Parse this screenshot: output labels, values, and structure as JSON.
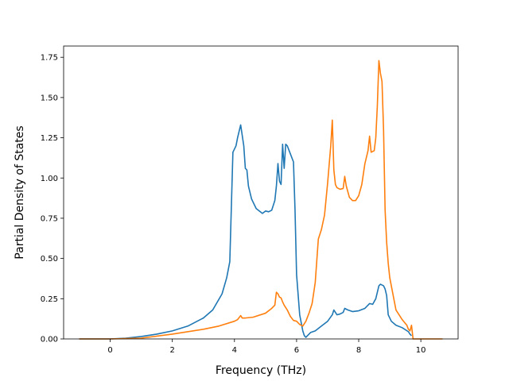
{
  "chart_data": {
    "type": "line",
    "title": "",
    "xlabel": "Frequency (THz)",
    "ylabel": "Partial Density of States",
    "xlim": [
      -1.5,
      11.2
    ],
    "ylim": [
      0,
      1.82
    ],
    "xticks": [
      0,
      2,
      4,
      6,
      8,
      10
    ],
    "xtick_labels": [
      "0",
      "2",
      "4",
      "6",
      "8",
      "10"
    ],
    "yticks": [
      0,
      0.25,
      0.5,
      0.75,
      1.0,
      1.25,
      1.5,
      1.75
    ],
    "ytick_labels": [
      "0.00",
      "0.25",
      "0.50",
      "0.75",
      "1.00",
      "1.25",
      "1.50",
      "1.75"
    ],
    "grid": false,
    "legend": "none",
    "series": [
      {
        "color": "#1f77b4",
        "x": [
          -1.0,
          0.0,
          0.5,
          1.0,
          1.5,
          2.0,
          2.5,
          3.0,
          3.3,
          3.6,
          3.75,
          3.85,
          3.95,
          4.05,
          4.1,
          4.2,
          4.3,
          4.35,
          4.4,
          4.45,
          4.55,
          4.7,
          4.9,
          5.0,
          5.1,
          5.2,
          5.3,
          5.35,
          5.4,
          5.45,
          5.5,
          5.55,
          5.6,
          5.65,
          5.7,
          5.8,
          5.9,
          5.95,
          6.0,
          6.1,
          6.2,
          6.25,
          6.3,
          6.35,
          6.45,
          6.6,
          6.8,
          7.0,
          7.15,
          7.2,
          7.3,
          7.4,
          7.5,
          7.55,
          7.65,
          7.8,
          8.0,
          8.2,
          8.35,
          8.45,
          8.55,
          8.65,
          8.7,
          8.8,
          8.85,
          8.9,
          8.95,
          9.05,
          9.2,
          9.4,
          9.6,
          9.65,
          9.7
        ],
        "y": [
          0.0,
          0.0,
          0.005,
          0.015,
          0.03,
          0.05,
          0.08,
          0.13,
          0.18,
          0.28,
          0.38,
          0.48,
          1.16,
          1.2,
          1.25,
          1.33,
          1.2,
          1.06,
          1.05,
          0.95,
          0.87,
          0.81,
          0.78,
          0.795,
          0.79,
          0.8,
          0.86,
          0.95,
          1.09,
          0.98,
          0.96,
          1.21,
          1.06,
          1.21,
          1.2,
          1.15,
          1.1,
          0.8,
          0.4,
          0.15,
          0.05,
          0.02,
          0.01,
          0.02,
          0.04,
          0.05,
          0.08,
          0.11,
          0.15,
          0.18,
          0.15,
          0.155,
          0.165,
          0.19,
          0.18,
          0.17,
          0.175,
          0.19,
          0.22,
          0.215,
          0.25,
          0.33,
          0.34,
          0.33,
          0.31,
          0.27,
          0.15,
          0.11,
          0.085,
          0.07,
          0.045,
          0.03,
          0.02
        ]
      },
      {
        "color": "#ff7f0e",
        "x": [
          -1.0,
          0.0,
          1.0,
          2.0,
          3.0,
          3.5,
          4.0,
          4.1,
          4.2,
          4.25,
          4.35,
          4.6,
          5.0,
          5.2,
          5.3,
          5.35,
          5.4,
          5.45,
          5.5,
          5.55,
          5.6,
          5.7,
          5.8,
          5.9,
          6.0,
          6.1,
          6.2,
          6.3,
          6.4,
          6.5,
          6.6,
          6.7,
          6.8,
          6.9,
          7.0,
          7.1,
          7.15,
          7.2,
          7.25,
          7.3,
          7.4,
          7.5,
          7.55,
          7.6,
          7.7,
          7.8,
          7.9,
          8.0,
          8.1,
          8.2,
          8.3,
          8.35,
          8.4,
          8.5,
          8.55,
          8.6,
          8.65,
          8.7,
          8.75,
          8.8,
          8.85,
          8.9,
          8.95,
          9.0,
          9.2,
          9.4,
          9.55,
          9.6,
          9.65,
          9.7,
          9.75,
          10.7
        ],
        "y": [
          0.0,
          0.0,
          0.005,
          0.03,
          0.06,
          0.08,
          0.11,
          0.12,
          0.145,
          0.13,
          0.13,
          0.135,
          0.16,
          0.19,
          0.21,
          0.29,
          0.28,
          0.26,
          0.255,
          0.23,
          0.21,
          0.18,
          0.14,
          0.115,
          0.11,
          0.09,
          0.08,
          0.11,
          0.16,
          0.22,
          0.35,
          0.62,
          0.68,
          0.77,
          0.97,
          1.2,
          1.36,
          1.05,
          0.96,
          0.94,
          0.93,
          0.935,
          1.01,
          0.95,
          0.88,
          0.86,
          0.86,
          0.89,
          0.96,
          1.09,
          1.17,
          1.26,
          1.16,
          1.17,
          1.25,
          1.45,
          1.73,
          1.65,
          1.6,
          1.3,
          0.8,
          0.6,
          0.47,
          0.38,
          0.18,
          0.12,
          0.085,
          0.06,
          0.05,
          0.085,
          0.0,
          0.0
        ]
      }
    ]
  }
}
